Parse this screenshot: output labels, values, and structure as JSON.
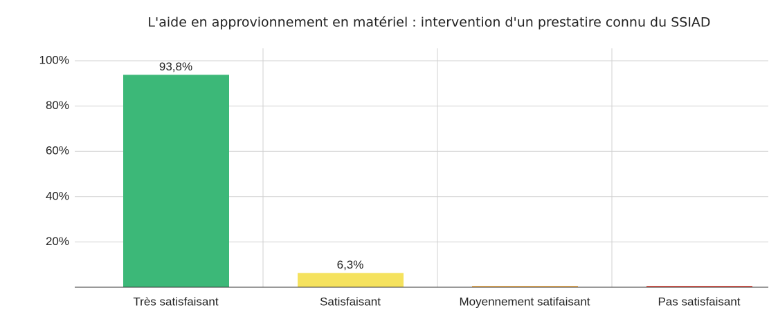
{
  "chart_data": {
    "type": "bar",
    "title": "L'aide en approvionnement en matériel : intervention d'un prestatire connu du SSIAD",
    "categories": [
      "Très satisfaisant",
      "Satisfaisant",
      "Moyennement satifaisant",
      "Pas satisfaisant"
    ],
    "values": [
      93.8,
      6.3,
      0,
      0
    ],
    "value_labels": [
      "93,8%",
      "6,3%",
      null,
      null
    ],
    "colors": [
      "#3cb878",
      "#f5e25e",
      "#f5b75a",
      "#e85a4f"
    ],
    "ylim": [
      0,
      100
    ],
    "yticks": [
      {
        "value": 20,
        "label": "20%"
      },
      {
        "value": 40,
        "label": "40%"
      },
      {
        "value": 60,
        "label": "60%"
      },
      {
        "value": 80,
        "label": "80%"
      },
      {
        "value": 100,
        "label": "100%"
      }
    ],
    "grid": true
  }
}
